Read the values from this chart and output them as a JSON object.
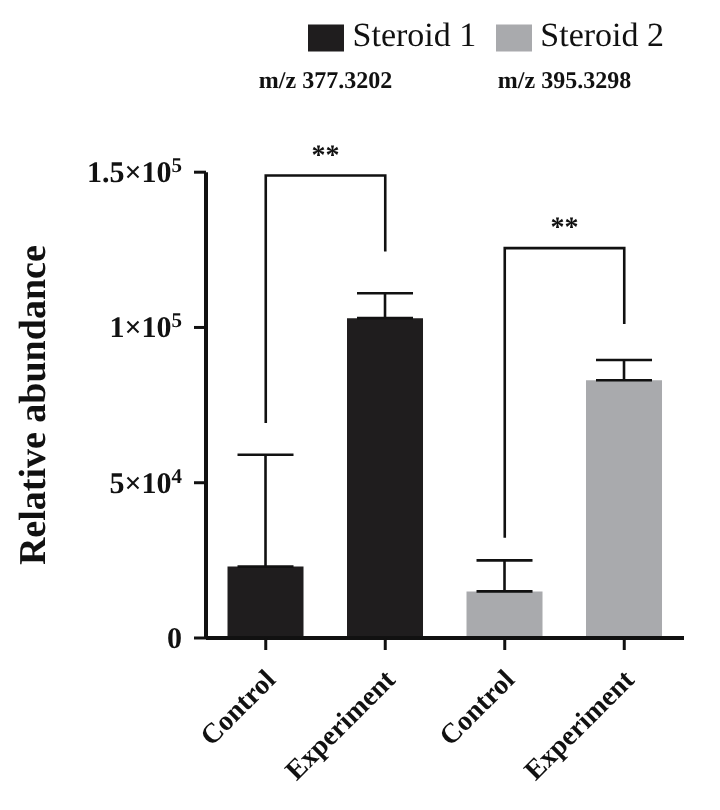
{
  "chart_data": {
    "type": "bar",
    "ylabel": "Relative abundance",
    "categories": [
      "Control",
      "Experiment",
      "Control",
      "Experiment"
    ],
    "series": [
      {
        "name": "Steroid 1",
        "color": "#1f1d1e",
        "values": [
          23000,
          103000,
          null,
          null
        ],
        "errors": [
          [
            23000,
            59000
          ],
          [
            103000,
            111000
          ],
          null,
          null
        ]
      },
      {
        "name": "Steroid 2",
        "color": "#a9aaad",
        "values": [
          null,
          null,
          15000,
          83000
        ],
        "errors": [
          null,
          null,
          [
            15000,
            25000
          ],
          [
            83000,
            89500
          ]
        ]
      }
    ],
    "ylim": [
      0,
      150000
    ],
    "yticks": [
      {
        "value": 0,
        "label": "0"
      },
      {
        "value": 50000,
        "label": "5×10$^{4}$"
      },
      {
        "value": 100000,
        "label": "1×10$^{5}$"
      },
      {
        "value": 150000,
        "label": "1.5×10$^{5}$"
      }
    ],
    "grid": false,
    "legend": "top right",
    "annotations": [
      "m/z 377.3202",
      "m/z 395.3298",
      "**",
      "**"
    ]
  }
}
